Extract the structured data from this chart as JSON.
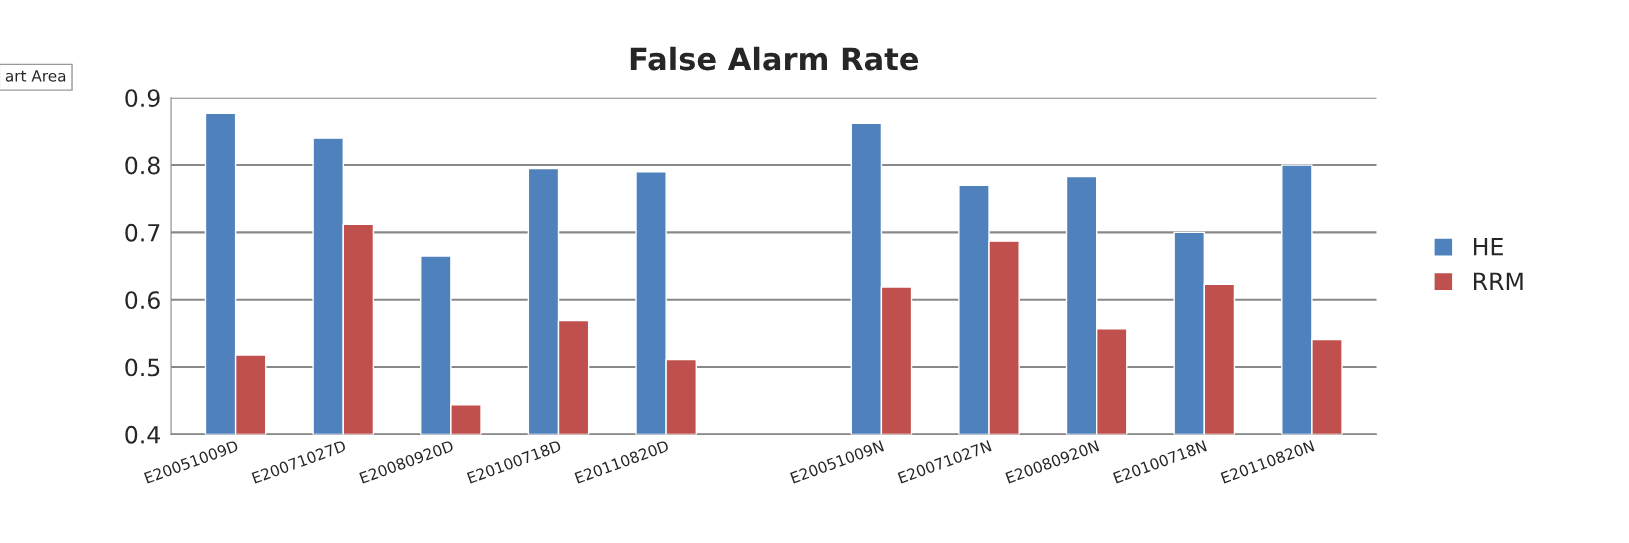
{
  "chart_data": {
    "type": "bar",
    "title": "False Alarm Rate",
    "categories": [
      "E20051009D",
      "E20071027D",
      "E20080920D",
      "E20100718D",
      "E20110820D",
      null,
      "E20051009N",
      "E20071027N",
      "E20080920N",
      "E20100718N",
      "E20110820N"
    ],
    "series": [
      {
        "name": "HE",
        "color": "#4f81bd",
        "values": [
          0.877,
          0.84,
          0.665,
          0.795,
          0.79,
          null,
          0.862,
          0.77,
          0.783,
          0.7,
          0.8
        ]
      },
      {
        "name": "RRM",
        "color": "#c0504d",
        "values": [
          0.518,
          0.712,
          0.444,
          0.569,
          0.511,
          null,
          0.619,
          0.687,
          0.557,
          0.623,
          0.541
        ]
      }
    ],
    "ylim": [
      0.4,
      0.9
    ],
    "yticks": [
      0.4,
      0.5,
      0.6,
      0.7,
      0.8,
      0.9
    ],
    "grid": "y",
    "legend": "right",
    "annotations": [
      "art Area"
    ]
  }
}
